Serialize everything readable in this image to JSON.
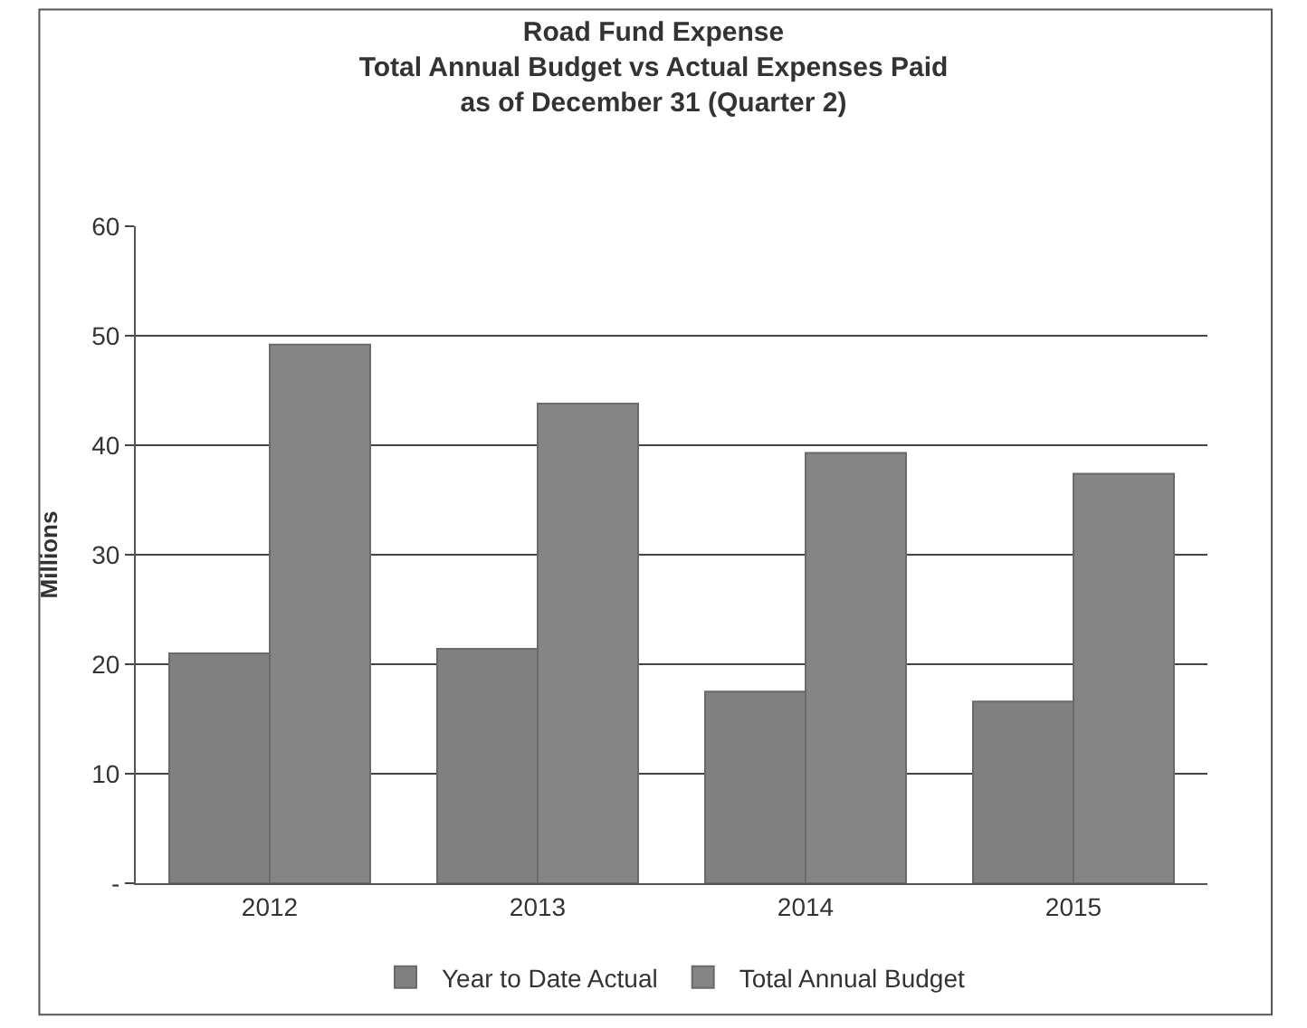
{
  "chart_data": {
    "type": "bar",
    "title": "Road Fund Expense\nTotal Annual Budget vs Actual Expenses Paid\nas of December 31 (Quarter 2)",
    "ylabel": "Millions",
    "categories": [
      "2012",
      "2013",
      "2014",
      "2015"
    ],
    "series": [
      {
        "name": "Year to Date Actual",
        "color": "#808080",
        "values": [
          21,
          21.4,
          17.5,
          16.6
        ]
      },
      {
        "name": "Total Annual Budget",
        "color": "#858585",
        "values": [
          49.2,
          43.8,
          39.3,
          37.4
        ]
      }
    ],
    "ylim": [
      0,
      60
    ],
    "yticks": [
      {
        "value": 0,
        "label": "-"
      },
      10,
      20,
      30,
      40,
      50,
      60
    ],
    "grid": "y",
    "legend": "bottom"
  }
}
